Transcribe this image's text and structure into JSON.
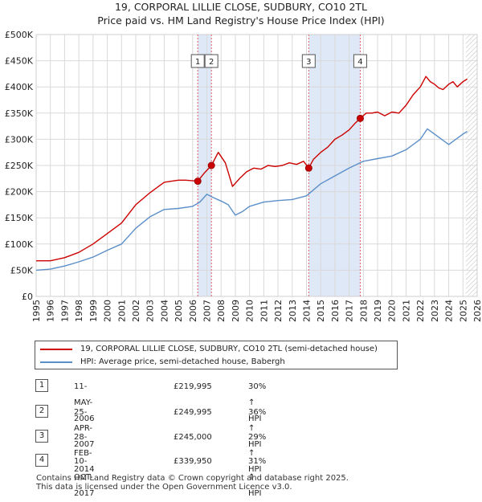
{
  "title_line1": "19, CORPORAL LILLIE CLOSE, SUDBURY, CO10 2TL",
  "title_line2": "Price paid vs. HM Land Registry's House Price Index (HPI)",
  "colors": {
    "property": "#cc0000",
    "hpi": "#5b8fc9",
    "highlight": "#dfe8f6",
    "grid": "#d9d9d9"
  },
  "chart_data": {
    "type": "line",
    "title": "19, CORPORAL LILLIE CLOSE, SUDBURY, CO10 2TL — Price paid vs. HM Land Registry's House Price Index (HPI)",
    "xlabel": "",
    "ylabel": "",
    "xlim": [
      1995.0,
      2026.0
    ],
    "ylim": [
      0,
      500000
    ],
    "x_ticks": [
      1995,
      1996,
      1997,
      1998,
      1999,
      2000,
      2001,
      2002,
      2003,
      2004,
      2005,
      2006,
      2007,
      2008,
      2009,
      2010,
      2011,
      2012,
      2013,
      2014,
      2015,
      2016,
      2017,
      2018,
      2019,
      2020,
      2021,
      2022,
      2023,
      2024,
      2025,
      2026
    ],
    "y_ticks": [
      {
        "value": 0,
        "label": "£0"
      },
      {
        "value": 50000,
        "label": "£50K"
      },
      {
        "value": 100000,
        "label": "£100K"
      },
      {
        "value": 150000,
        "label": "£150K"
      },
      {
        "value": 200000,
        "label": "£200K"
      },
      {
        "value": 250000,
        "label": "£250K"
      },
      {
        "value": 300000,
        "label": "£300K"
      },
      {
        "value": 350000,
        "label": "£350K"
      },
      {
        "value": 400000,
        "label": "£400K"
      },
      {
        "value": 450000,
        "label": "£450K"
      },
      {
        "value": 500000,
        "label": "£500K"
      }
    ],
    "highlight_ranges": [
      [
        2006.36,
        2007.32
      ],
      [
        2014.16,
        2017.78
      ]
    ],
    "future_from": 2025.2,
    "series": [
      {
        "name": "19, CORPORAL LILLIE CLOSE, SUDBURY, CO10 2TL (semi-detached house)",
        "color": "#cc0000",
        "x": [
          1995.0,
          1996.0,
          1997.0,
          1998.0,
          1999.0,
          2000.0,
          2001.0,
          2002.0,
          2003.0,
          2004.0,
          2005.0,
          2005.5,
          2006.36,
          2006.8,
          2007.32,
          2007.8,
          2008.3,
          2008.8,
          2009.3,
          2009.8,
          2010.3,
          2010.8,
          2011.3,
          2011.8,
          2012.3,
          2012.8,
          2013.3,
          2013.8,
          2014.16,
          2014.5,
          2015.0,
          2015.5,
          2016.0,
          2016.5,
          2017.0,
          2017.4,
          2017.78,
          2018.2,
          2018.6,
          2019.0,
          2019.5,
          2020.0,
          2020.5,
          2021.0,
          2021.5,
          2022.0,
          2022.4,
          2022.7,
          2023.0,
          2023.3,
          2023.6,
          2024.0,
          2024.3,
          2024.6,
          2025.0,
          2025.3
        ],
        "values": [
          68000,
          68000,
          74000,
          84000,
          100000,
          120000,
          140000,
          175000,
          198000,
          218000,
          222000,
          222000,
          219995,
          235000,
          249995,
          275000,
          255000,
          210000,
          225000,
          238000,
          245000,
          243000,
          250000,
          248000,
          250000,
          255000,
          252000,
          258000,
          245000,
          262000,
          275000,
          285000,
          300000,
          308000,
          318000,
          330000,
          339950,
          350000,
          350000,
          352000,
          345000,
          352000,
          350000,
          365000,
          385000,
          400000,
          420000,
          410000,
          405000,
          398000,
          395000,
          405000,
          410000,
          400000,
          410000,
          415000
        ]
      },
      {
        "name": "HPI: Average price, semi-detached house, Babergh",
        "color": "#5b8fc9",
        "x": [
          1995.0,
          1996.0,
          1997.0,
          1998.0,
          1999.0,
          2000.0,
          2001.0,
          2002.0,
          2003.0,
          2004.0,
          2005.0,
          2006.0,
          2006.5,
          2007.0,
          2007.5,
          2008.0,
          2008.5,
          2009.0,
          2009.5,
          2010.0,
          2011.0,
          2012.0,
          2013.0,
          2014.0,
          2015.0,
          2016.0,
          2017.0,
          2018.0,
          2019.0,
          2020.0,
          2021.0,
          2022.0,
          2022.5,
          2023.0,
          2023.5,
          2024.0,
          2024.5,
          2025.0,
          2025.3
        ],
        "values": [
          50000,
          52000,
          58000,
          66000,
          75000,
          88000,
          100000,
          130000,
          152000,
          166000,
          168000,
          172000,
          180000,
          195000,
          188000,
          182000,
          175000,
          155000,
          162000,
          172000,
          180000,
          183000,
          185000,
          192000,
          215000,
          230000,
          245000,
          258000,
          263000,
          268000,
          280000,
          300000,
          320000,
          310000,
          300000,
          290000,
          300000,
          310000,
          315000
        ]
      }
    ],
    "annotations": [
      {
        "label": "1",
        "x": 2006.36
      },
      {
        "label": "2",
        "x": 2007.32
      },
      {
        "label": "3",
        "x": 2014.16
      },
      {
        "label": "4",
        "x": 2017.78
      }
    ],
    "sale_points": [
      {
        "x": 2006.36,
        "value": 219995
      },
      {
        "x": 2007.32,
        "value": 249995
      },
      {
        "x": 2014.16,
        "value": 245000
      },
      {
        "x": 2017.78,
        "value": 339950
      }
    ]
  },
  "legend": {
    "property": "19, CORPORAL LILLIE CLOSE, SUDBURY, CO10 2TL (semi-detached house)",
    "hpi": "HPI: Average price, semi-detached house, Babergh"
  },
  "transactions": [
    {
      "num": "1",
      "date": "11-MAY-2006",
      "price": "£219,995",
      "hpi": "30% ↑ HPI"
    },
    {
      "num": "2",
      "date": "25-APR-2007",
      "price": "£249,995",
      "hpi": "36% ↑ HPI"
    },
    {
      "num": "3",
      "date": "28-FEB-2014",
      "price": "£245,000",
      "hpi": "29% ↑ HPI"
    },
    {
      "num": "4",
      "date": "10-OCT-2017",
      "price": "£339,950",
      "hpi": "31% ↑ HPI"
    }
  ],
  "footer": {
    "line1": "Contains HM Land Registry data © Crown copyright and database right 2025.",
    "line2": "This data is licensed under the Open Government Licence v3.0."
  }
}
